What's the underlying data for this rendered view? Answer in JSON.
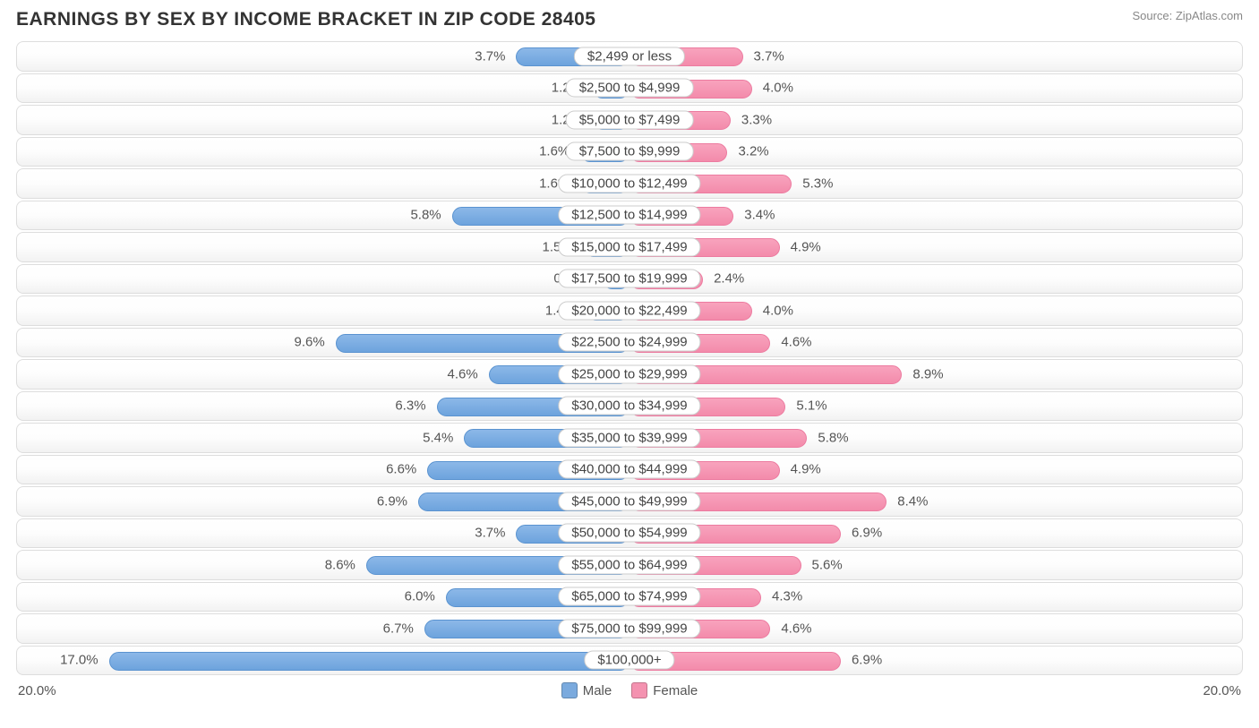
{
  "title": "EARNINGS BY SEX BY INCOME BRACKET IN ZIP CODE 28405",
  "source": "Source: ZipAtlas.com",
  "axis_max": 20.0,
  "axis_max_label": "20.0%",
  "legend": {
    "male": {
      "label": "Male",
      "swatch": "#7aaade"
    },
    "female": {
      "label": "Female",
      "swatch": "#f492b0"
    }
  },
  "colors": {
    "male_bar_top": "#8cb8e8",
    "male_bar_bottom": "#6da3dd",
    "male_bar_border": "#5a93d0",
    "female_bar_top": "#f8a3bd",
    "female_bar_bottom": "#f38bab",
    "female_bar_border": "#ec7ba0",
    "row_border": "#dddddd",
    "row_bg_top": "#ffffff",
    "row_bg_bottom": "#f2f2f2",
    "label_text": "#555555",
    "title_text": "#333333",
    "source_text": "#888888"
  },
  "brackets": [
    {
      "label": "$2,499 or less",
      "male": 3.7,
      "male_label": "3.7%",
      "female": 3.7,
      "female_label": "3.7%"
    },
    {
      "label": "$2,500 to $4,999",
      "male": 1.2,
      "male_label": "1.2%",
      "female": 4.0,
      "female_label": "4.0%"
    },
    {
      "label": "$5,000 to $7,499",
      "male": 1.2,
      "male_label": "1.2%",
      "female": 3.3,
      "female_label": "3.3%"
    },
    {
      "label": "$7,500 to $9,999",
      "male": 1.6,
      "male_label": "1.6%",
      "female": 3.2,
      "female_label": "3.2%"
    },
    {
      "label": "$10,000 to $12,499",
      "male": 1.6,
      "male_label": "1.6%",
      "female": 5.3,
      "female_label": "5.3%"
    },
    {
      "label": "$12,500 to $14,999",
      "male": 5.8,
      "male_label": "5.8%",
      "female": 3.4,
      "female_label": "3.4%"
    },
    {
      "label": "$15,000 to $17,499",
      "male": 1.5,
      "male_label": "1.5%",
      "female": 4.9,
      "female_label": "4.9%"
    },
    {
      "label": "$17,500 to $19,999",
      "male": 0.88,
      "male_label": "0.88%",
      "female": 2.4,
      "female_label": "2.4%"
    },
    {
      "label": "$20,000 to $22,499",
      "male": 1.4,
      "male_label": "1.4%",
      "female": 4.0,
      "female_label": "4.0%"
    },
    {
      "label": "$22,500 to $24,999",
      "male": 9.6,
      "male_label": "9.6%",
      "female": 4.6,
      "female_label": "4.6%"
    },
    {
      "label": "$25,000 to $29,999",
      "male": 4.6,
      "male_label": "4.6%",
      "female": 8.9,
      "female_label": "8.9%"
    },
    {
      "label": "$30,000 to $34,999",
      "male": 6.3,
      "male_label": "6.3%",
      "female": 5.1,
      "female_label": "5.1%"
    },
    {
      "label": "$35,000 to $39,999",
      "male": 5.4,
      "male_label": "5.4%",
      "female": 5.8,
      "female_label": "5.8%"
    },
    {
      "label": "$40,000 to $44,999",
      "male": 6.6,
      "male_label": "6.6%",
      "female": 4.9,
      "female_label": "4.9%"
    },
    {
      "label": "$45,000 to $49,999",
      "male": 6.9,
      "male_label": "6.9%",
      "female": 8.4,
      "female_label": "8.4%"
    },
    {
      "label": "$50,000 to $54,999",
      "male": 3.7,
      "male_label": "3.7%",
      "female": 6.9,
      "female_label": "6.9%"
    },
    {
      "label": "$55,000 to $64,999",
      "male": 8.6,
      "male_label": "8.6%",
      "female": 5.6,
      "female_label": "5.6%"
    },
    {
      "label": "$65,000 to $74,999",
      "male": 6.0,
      "male_label": "6.0%",
      "female": 4.3,
      "female_label": "4.3%"
    },
    {
      "label": "$75,000 to $99,999",
      "male": 6.7,
      "male_label": "6.7%",
      "female": 4.6,
      "female_label": "4.6%"
    },
    {
      "label": "$100,000+",
      "male": 17.0,
      "male_label": "17.0%",
      "female": 6.9,
      "female_label": "6.9%"
    }
  ]
}
